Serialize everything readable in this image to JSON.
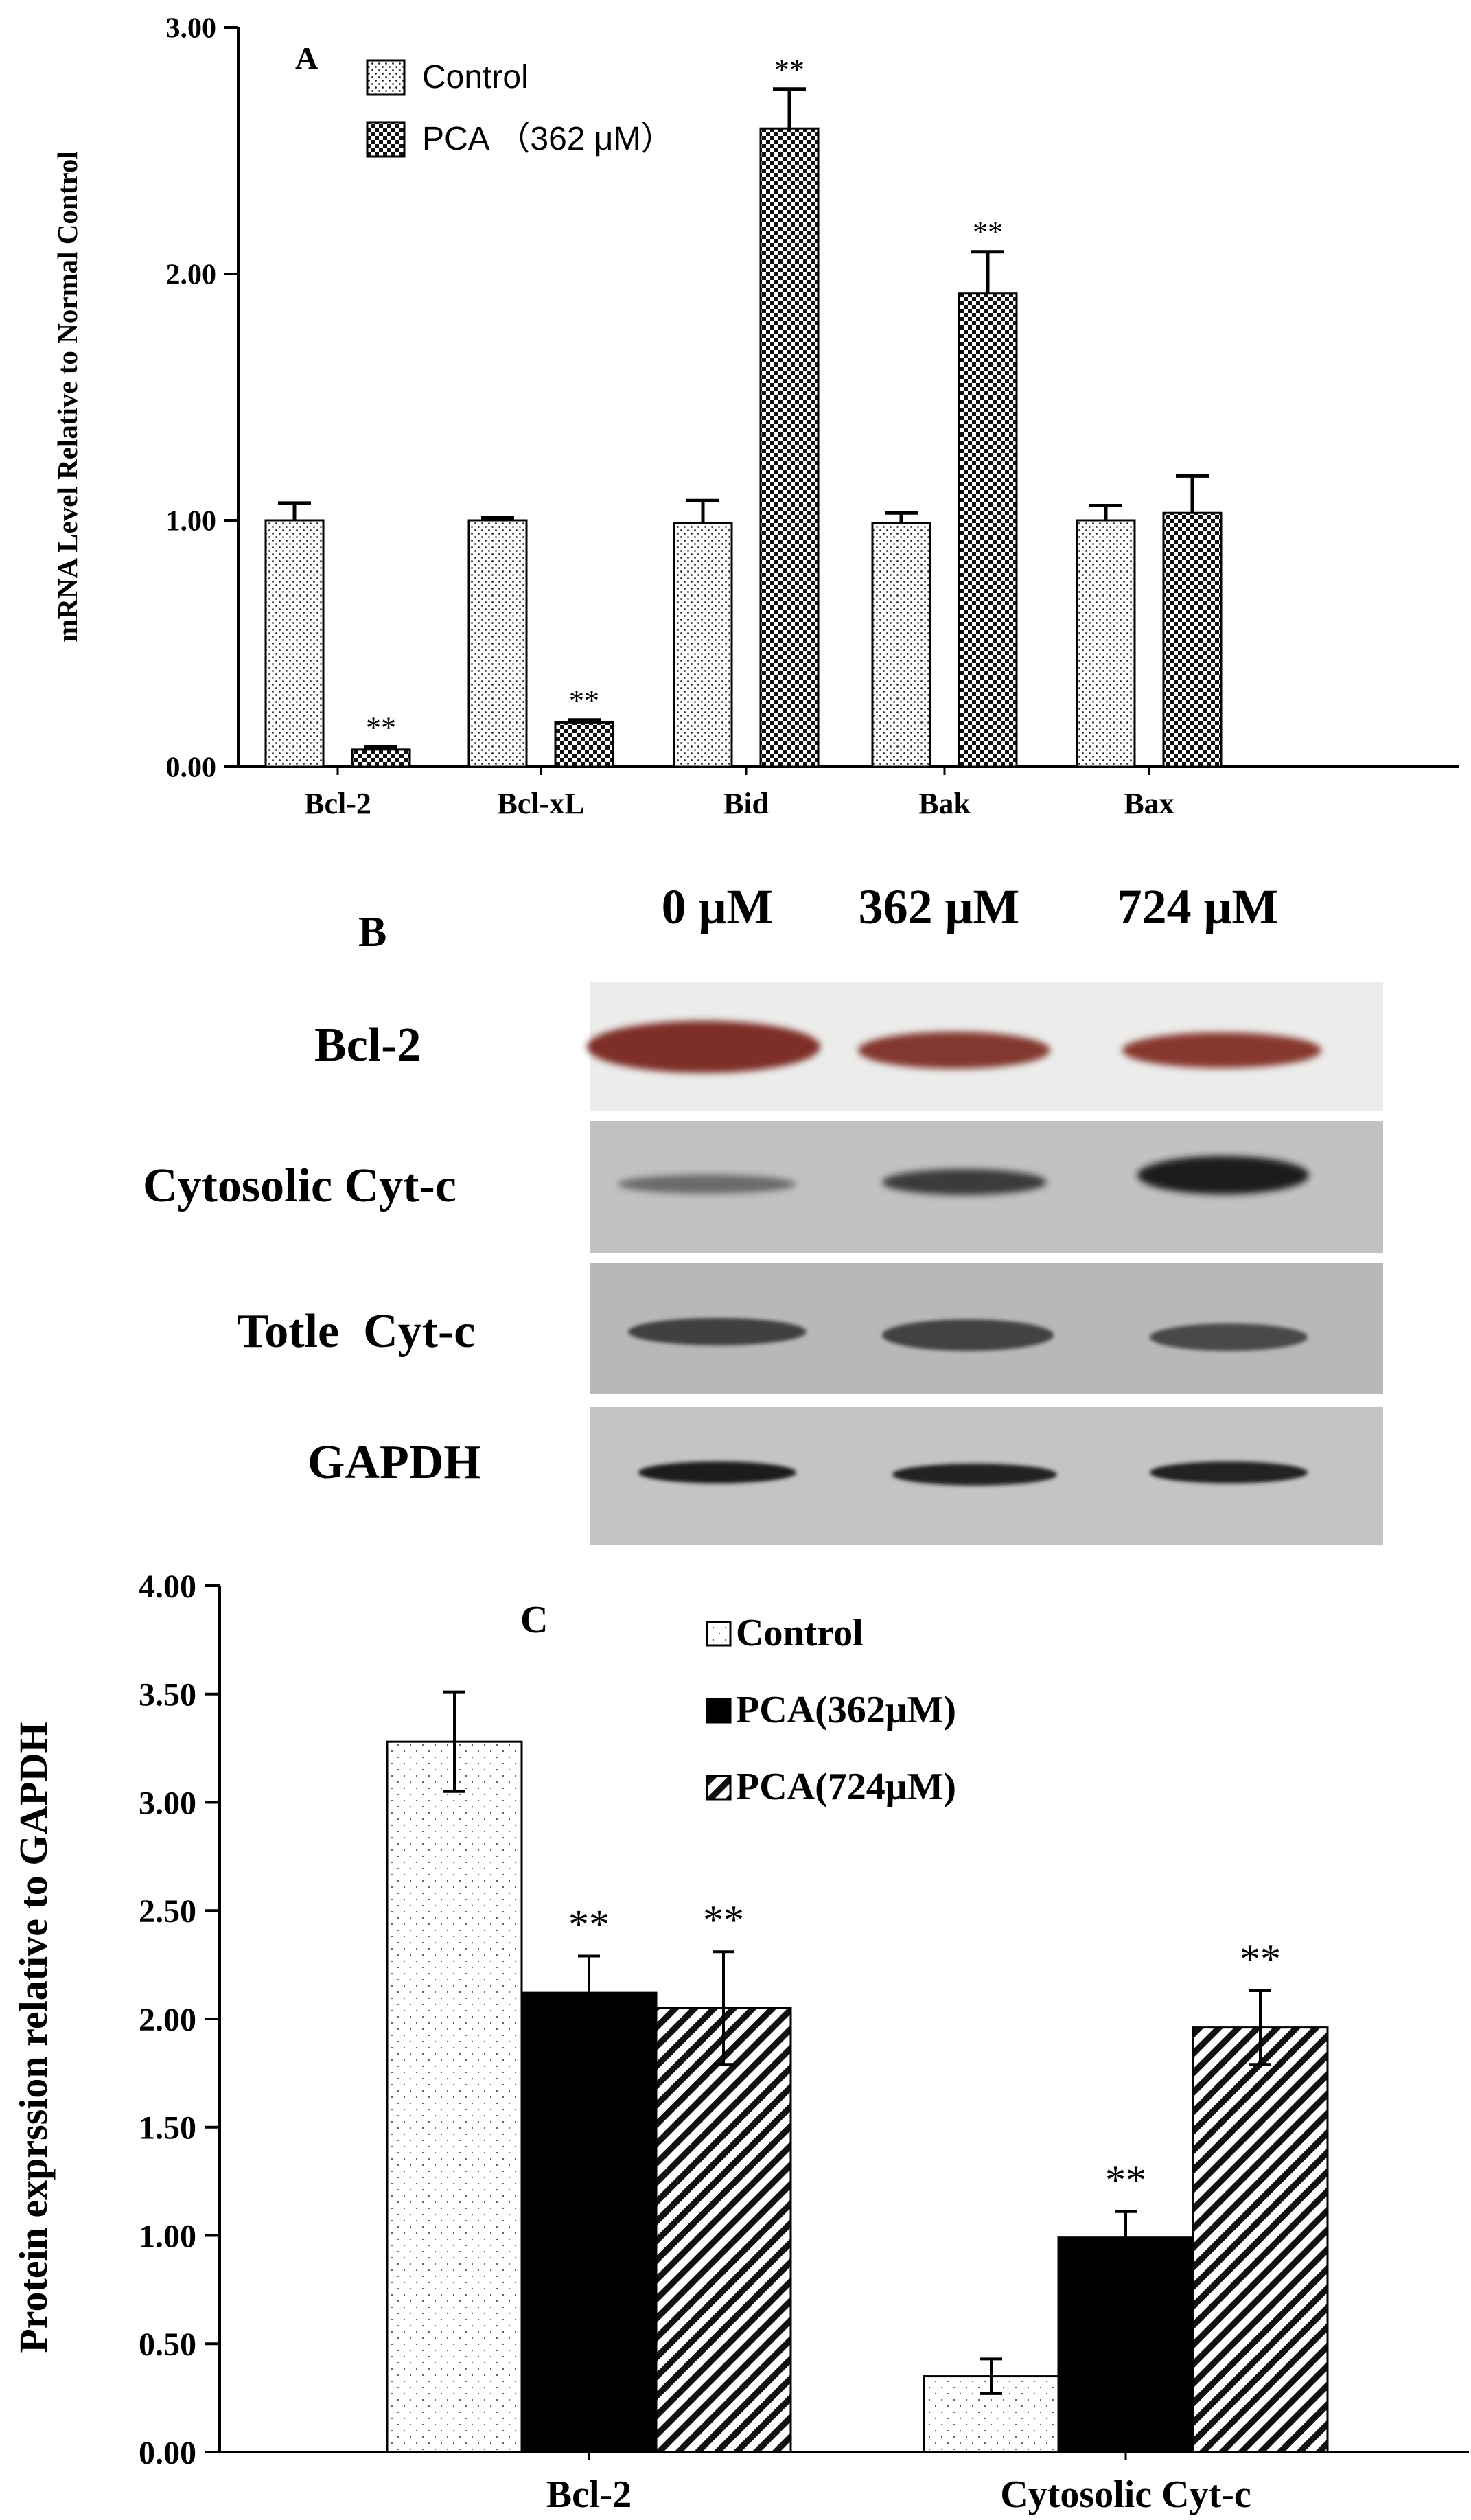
{
  "figure": {
    "panel_a": {
      "label": "A",
      "ylabel": "mRNA Level Relative to Normal Control",
      "legend": [
        "Control",
        "PCA （362 μM）"
      ]
    },
    "panel_b": {
      "label": "B",
      "lanes": [
        "0 μM",
        "362 μM",
        "724 μM"
      ],
      "rows": [
        "Bcl-2",
        "Cytosolic Cyt-c",
        "Totle  Cyt-c",
        "GAPDH"
      ]
    },
    "panel_c": {
      "label": "C",
      "ylabel": "Protein exprssion relative to GAPDH",
      "legend": [
        "Control",
        "PCA(362μM)",
        "PCA(724μM)"
      ]
    }
  },
  "chart_data": [
    {
      "type": "bar",
      "panel": "A",
      "ylabel": "mRNA Level Relative to Normal Control",
      "ylim": [
        0,
        3
      ],
      "ytick_labels": [
        "0.00",
        "1.00",
        "2.00",
        "3.00"
      ],
      "categories": [
        "Bcl-2",
        "Bcl-xL",
        "Bid",
        "Bak",
        "Bax"
      ],
      "series": [
        {
          "name": "Control",
          "values": [
            1.0,
            1.0,
            0.99,
            0.99,
            1.0
          ],
          "errors": [
            0.07,
            0.01,
            0.09,
            0.04,
            0.06
          ],
          "annotations": [
            "",
            "",
            "",
            "",
            ""
          ]
        },
        {
          "name": "PCA （362 μM）",
          "values": [
            0.07,
            0.18,
            2.59,
            1.92,
            1.03
          ],
          "errors": [
            0.01,
            0.01,
            0.16,
            0.17,
            0.15
          ],
          "annotations": [
            "**",
            "**",
            "**",
            "**",
            ""
          ]
        }
      ],
      "grid": false,
      "legend_position": "top-left"
    },
    {
      "type": "bar",
      "panel": "C",
      "ylabel": "Protein exprssion relative to GAPDH",
      "ylim": [
        0,
        4
      ],
      "ytick_labels": [
        "0.00",
        "0.50",
        "1.00",
        "1.50",
        "2.00",
        "2.50",
        "3.00",
        "3.50",
        "4.00"
      ],
      "categories": [
        "Bcl-2",
        "Cytosolic Cyt-c"
      ],
      "series": [
        {
          "name": "Control",
          "values": [
            3.28,
            0.35
          ],
          "errors": [
            0.23,
            0.08
          ],
          "annotations": [
            "",
            ""
          ]
        },
        {
          "name": "PCA(362μM)",
          "values": [
            2.12,
            0.99
          ],
          "errors": [
            0.17,
            0.12
          ],
          "annotations": [
            "**",
            "**"
          ]
        },
        {
          "name": "PCA(724μM)",
          "values": [
            2.05,
            1.96
          ],
          "errors": [
            0.26,
            0.17
          ],
          "annotations": [
            "**",
            "**"
          ]
        }
      ],
      "grid": false,
      "legend_position": "top-right"
    }
  ]
}
